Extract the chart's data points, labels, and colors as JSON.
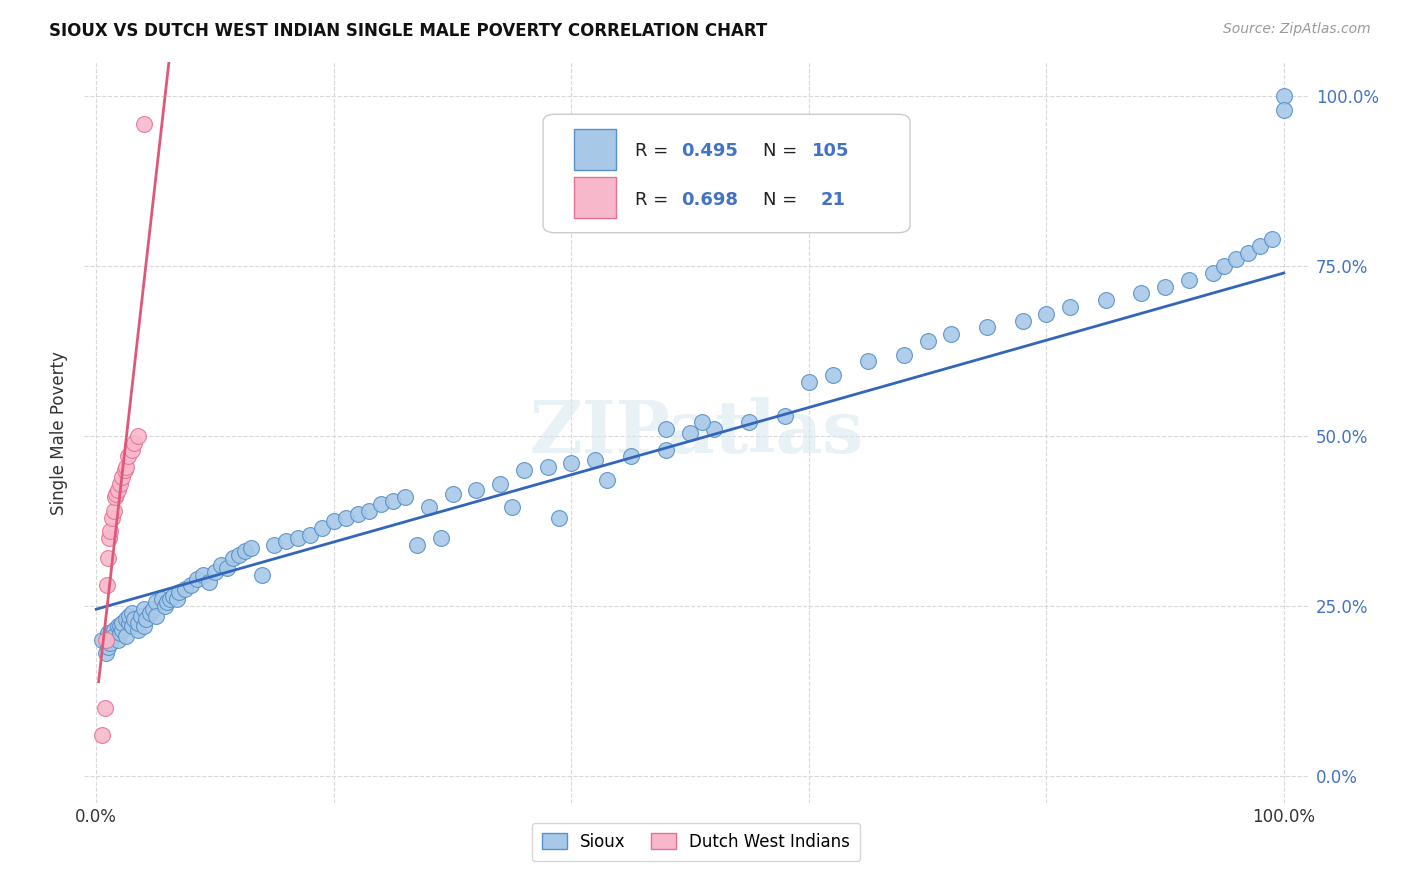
{
  "title": "SIOUX VS DUTCH WEST INDIAN SINGLE MALE POVERTY CORRELATION CHART",
  "source": "Source: ZipAtlas.com",
  "ylabel": "Single Male Poverty",
  "legend_sioux_label": "Sioux",
  "legend_dwi_label": "Dutch West Indians",
  "sioux_R": 0.495,
  "sioux_N": 105,
  "dwi_R": 0.698,
  "dwi_N": 21,
  "sioux_color": "#a8c8e8",
  "sioux_edge_color": "#5590c8",
  "sioux_line_color": "#3366bb",
  "dwi_color": "#f8b8cc",
  "dwi_edge_color": "#e87090",
  "dwi_line_color": "#e05878",
  "background_color": "#ffffff",
  "watermark": "ZIPatlas",
  "grid_color": "#d8d8d8",
  "tick_color": "#4472c4",
  "text_color": "#333333",
  "sioux_x": [
    0.005,
    0.008,
    0.01,
    0.01,
    0.012,
    0.015,
    0.015,
    0.018,
    0.018,
    0.02,
    0.02,
    0.022,
    0.022,
    0.025,
    0.025,
    0.028,
    0.028,
    0.03,
    0.03,
    0.032,
    0.035,
    0.035,
    0.038,
    0.04,
    0.04,
    0.042,
    0.045,
    0.048,
    0.05,
    0.05,
    0.055,
    0.058,
    0.06,
    0.062,
    0.065,
    0.068,
    0.07,
    0.075,
    0.08,
    0.085,
    0.09,
    0.095,
    0.1,
    0.105,
    0.11,
    0.115,
    0.12,
    0.125,
    0.13,
    0.14,
    0.15,
    0.16,
    0.17,
    0.18,
    0.19,
    0.2,
    0.21,
    0.22,
    0.23,
    0.24,
    0.25,
    0.26,
    0.28,
    0.3,
    0.32,
    0.34,
    0.36,
    0.38,
    0.4,
    0.42,
    0.45,
    0.48,
    0.5,
    0.52,
    0.55,
    0.58,
    0.6,
    0.62,
    0.65,
    0.68,
    0.7,
    0.72,
    0.75,
    0.78,
    0.8,
    0.82,
    0.85,
    0.88,
    0.9,
    0.92,
    0.94,
    0.95,
    0.96,
    0.97,
    0.98,
    0.99,
    1.0,
    1.0,
    0.48,
    0.51,
    0.39,
    0.35,
    0.29,
    0.27,
    0.43
  ],
  "sioux_y": [
    0.2,
    0.18,
    0.21,
    0.19,
    0.195,
    0.215,
    0.205,
    0.22,
    0.2,
    0.21,
    0.22,
    0.215,
    0.225,
    0.23,
    0.205,
    0.225,
    0.235,
    0.22,
    0.24,
    0.23,
    0.215,
    0.225,
    0.235,
    0.245,
    0.22,
    0.23,
    0.24,
    0.245,
    0.255,
    0.235,
    0.26,
    0.25,
    0.255,
    0.26,
    0.265,
    0.26,
    0.27,
    0.275,
    0.28,
    0.29,
    0.295,
    0.285,
    0.3,
    0.31,
    0.305,
    0.32,
    0.325,
    0.33,
    0.335,
    0.295,
    0.34,
    0.345,
    0.35,
    0.355,
    0.365,
    0.375,
    0.38,
    0.385,
    0.39,
    0.4,
    0.405,
    0.41,
    0.395,
    0.415,
    0.42,
    0.43,
    0.45,
    0.455,
    0.46,
    0.465,
    0.47,
    0.48,
    0.505,
    0.51,
    0.52,
    0.53,
    0.58,
    0.59,
    0.61,
    0.62,
    0.64,
    0.65,
    0.66,
    0.67,
    0.68,
    0.69,
    0.7,
    0.71,
    0.72,
    0.73,
    0.74,
    0.75,
    0.76,
    0.77,
    0.78,
    0.79,
    1.0,
    0.98,
    0.51,
    0.52,
    0.38,
    0.395,
    0.35,
    0.34,
    0.435
  ],
  "dwi_x": [
    0.005,
    0.007,
    0.008,
    0.009,
    0.01,
    0.011,
    0.012,
    0.013,
    0.015,
    0.016,
    0.017,
    0.018,
    0.02,
    0.022,
    0.024,
    0.025,
    0.027,
    0.03,
    0.032,
    0.035,
    0.04
  ],
  "dwi_y": [
    0.06,
    0.1,
    0.2,
    0.28,
    0.32,
    0.35,
    0.36,
    0.38,
    0.39,
    0.41,
    0.415,
    0.42,
    0.43,
    0.44,
    0.45,
    0.455,
    0.47,
    0.48,
    0.49,
    0.5,
    0.96
  ],
  "sioux_line_x": [
    0.0,
    1.0
  ],
  "sioux_line_y": [
    0.245,
    0.74
  ],
  "dwi_line_x_start": 0.002,
  "dwi_line_x_end": 0.065,
  "xlim": [
    -0.01,
    1.02
  ],
  "ylim": [
    -0.04,
    1.05
  ],
  "yticks": [
    0.0,
    0.25,
    0.5,
    0.75,
    1.0
  ],
  "xtick_labels_show": [
    "0.0%",
    "",
    "",
    "",
    "",
    "100.0%"
  ],
  "ytick_right_labels": [
    "0.0%",
    "25.0%",
    "50.0%",
    "75.0%",
    "100.0%"
  ]
}
